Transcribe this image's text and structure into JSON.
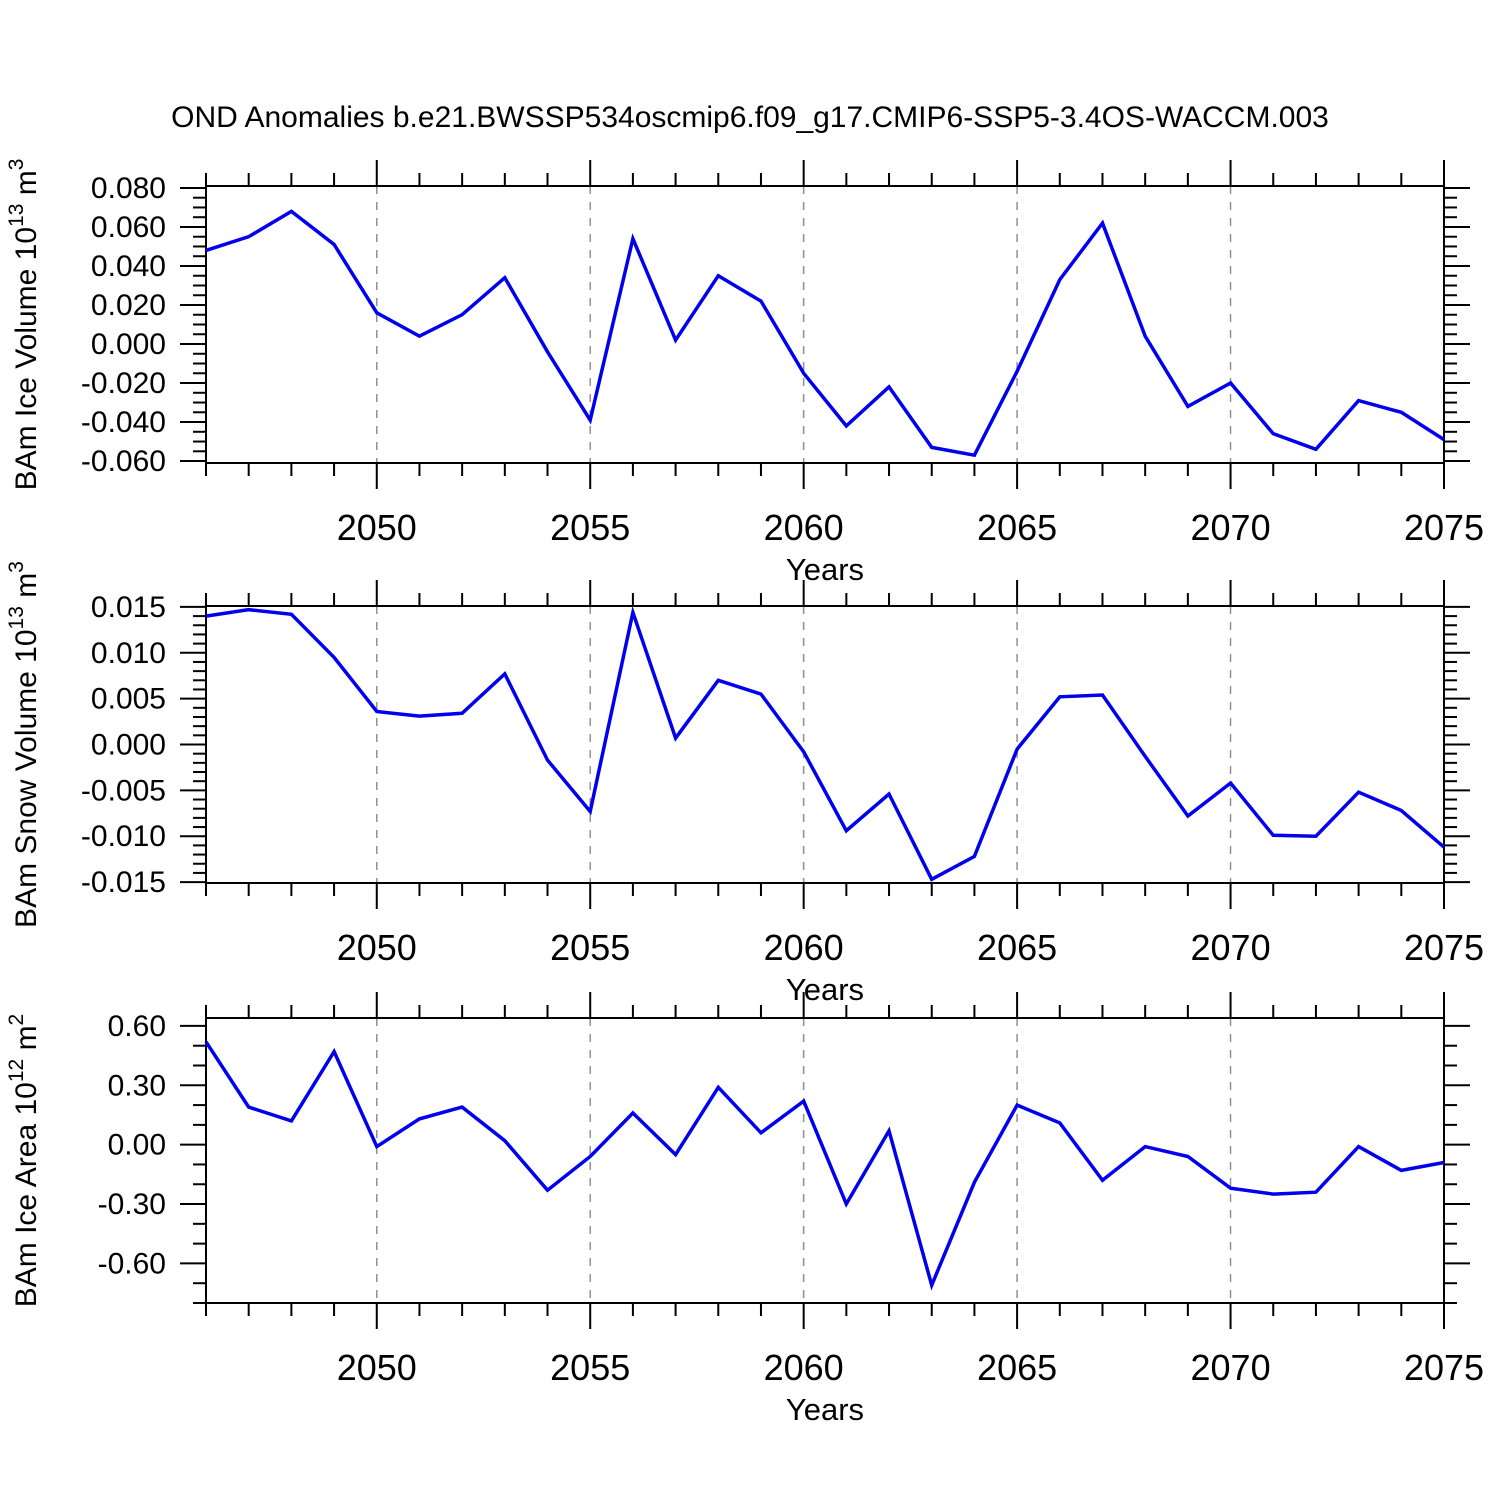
{
  "title": "OND Anomalies b.e21.BWSSP534oscmip6.f09_g17.CMIP6-SSP5-3.4OS-WACCM.003",
  "colors": {
    "line": "#0000ee",
    "grid": "#909090",
    "axis": "#000000",
    "text": "#000000",
    "background": "#ffffff"
  },
  "chart_data": [
    {
      "type": "line",
      "title": "",
      "ylabel": "BAm Ice Volume 10^13 m^3",
      "ylabel_parts": [
        {
          "text": "BAm Ice Volume 10"
        },
        {
          "text": "13",
          "sup": true
        },
        {
          "text": " m"
        },
        {
          "text": "3",
          "sup": true
        }
      ],
      "xlabel": "Years",
      "x": [
        2046,
        2047,
        2048,
        2049,
        2050,
        2051,
        2052,
        2053,
        2054,
        2055,
        2056,
        2057,
        2058,
        2059,
        2060,
        2061,
        2062,
        2063,
        2064,
        2065,
        2066,
        2067,
        2068,
        2069,
        2070,
        2071,
        2072,
        2073,
        2074,
        2075
      ],
      "values": [
        0.048,
        0.055,
        0.068,
        0.051,
        0.016,
        0.004,
        0.015,
        0.034,
        -0.004,
        -0.039,
        0.054,
        0.002,
        0.035,
        0.022,
        -0.015,
        -0.042,
        -0.022,
        -0.053,
        -0.057,
        -0.014,
        0.033,
        0.062,
        0.004,
        -0.032,
        -0.02,
        -0.046,
        -0.054,
        -0.029,
        -0.035,
        -0.049
      ],
      "xlim": [
        2046,
        2075
      ],
      "ylim": [
        -0.061,
        0.081
      ],
      "xticks": {
        "major": [
          2050,
          2055,
          2060,
          2065,
          2070,
          2075
        ],
        "labels": [
          "2050",
          "2055",
          "2060",
          "2065",
          "2070",
          "2075"
        ],
        "minor_step": 1
      },
      "yticks": {
        "major": [
          0.08,
          0.06,
          0.04,
          0.02,
          0.0,
          -0.02,
          -0.04,
          -0.06
        ],
        "labels": [
          "0.080",
          "0.060",
          "0.040",
          "0.020",
          "0.000",
          "-0.020",
          "-0.040",
          "-0.060"
        ],
        "minor_step": 0.005
      },
      "grid": "vertical-dashed",
      "legend": "none"
    },
    {
      "type": "line",
      "title": "",
      "ylabel": "BAm Snow Volume 10^13 m^3",
      "ylabel_parts": [
        {
          "text": "BAm Snow Volume 10"
        },
        {
          "text": "13",
          "sup": true
        },
        {
          "text": " m"
        },
        {
          "text": "3",
          "sup": true
        }
      ],
      "xlabel": "Years",
      "x": [
        2046,
        2047,
        2048,
        2049,
        2050,
        2051,
        2052,
        2053,
        2054,
        2055,
        2056,
        2057,
        2058,
        2059,
        2060,
        2061,
        2062,
        2063,
        2064,
        2065,
        2066,
        2067,
        2068,
        2069,
        2070,
        2071,
        2072,
        2073,
        2074,
        2075
      ],
      "values": [
        0.014,
        0.0147,
        0.0142,
        0.0095,
        0.0036,
        0.0031,
        0.0034,
        0.0077,
        -0.0017,
        -0.0073,
        0.0144,
        0.0007,
        0.007,
        0.0055,
        -0.0008,
        -0.0094,
        -0.0054,
        -0.0147,
        -0.0122,
        -0.0005,
        0.0052,
        0.0054,
        -0.0013,
        -0.0078,
        -0.0042,
        -0.0099,
        -0.01,
        -0.0052,
        -0.0072,
        -0.0112
      ],
      "xlim": [
        2046,
        2075
      ],
      "ylim": [
        -0.0151,
        0.0151
      ],
      "xticks": {
        "major": [
          2050,
          2055,
          2060,
          2065,
          2070,
          2075
        ],
        "labels": [
          "2050",
          "2055",
          "2060",
          "2065",
          "2070",
          "2075"
        ],
        "minor_step": 1
      },
      "yticks": {
        "major": [
          0.015,
          0.01,
          0.005,
          0.0,
          -0.005,
          -0.01,
          -0.015
        ],
        "labels": [
          "0.015",
          "0.010",
          "0.005",
          "0.000",
          "-0.005",
          "-0.010",
          "-0.015"
        ],
        "minor_step": 0.001
      },
      "grid": "vertical-dashed",
      "legend": "none"
    },
    {
      "type": "line",
      "title": "",
      "ylabel": "BAm Ice Area 10^12 m^2",
      "ylabel_parts": [
        {
          "text": "BAm Ice Area 10"
        },
        {
          "text": "12",
          "sup": true
        },
        {
          "text": " m"
        },
        {
          "text": "2",
          "sup": true
        }
      ],
      "xlabel": "Years",
      "x": [
        2046,
        2047,
        2048,
        2049,
        2050,
        2051,
        2052,
        2053,
        2054,
        2055,
        2056,
        2057,
        2058,
        2059,
        2060,
        2061,
        2062,
        2063,
        2064,
        2065,
        2066,
        2067,
        2068,
        2069,
        2070,
        2071,
        2072,
        2073,
        2074,
        2075
      ],
      "values": [
        0.52,
        0.19,
        0.12,
        0.47,
        -0.01,
        0.13,
        0.19,
        0.02,
        -0.23,
        -0.06,
        0.16,
        -0.05,
        0.29,
        0.06,
        0.22,
        -0.3,
        0.07,
        -0.71,
        -0.19,
        0.2,
        0.11,
        -0.18,
        -0.01,
        -0.06,
        -0.22,
        -0.25,
        -0.24,
        -0.01,
        -0.13,
        -0.09
      ],
      "xlim": [
        2046,
        2075
      ],
      "ylim": [
        -0.8,
        0.64
      ],
      "xticks": {
        "major": [
          2050,
          2055,
          2060,
          2065,
          2070,
          2075
        ],
        "labels": [
          "2050",
          "2055",
          "2060",
          "2065",
          "2070",
          "2075"
        ],
        "minor_step": 1
      },
      "yticks": {
        "major": [
          0.6,
          0.3,
          0.0,
          -0.3,
          -0.6
        ],
        "labels": [
          "0.60",
          "0.30",
          "0.00",
          "-0.30",
          "-0.60"
        ],
        "minor_step": 0.1
      },
      "grid": "vertical-dashed",
      "legend": "none"
    }
  ]
}
